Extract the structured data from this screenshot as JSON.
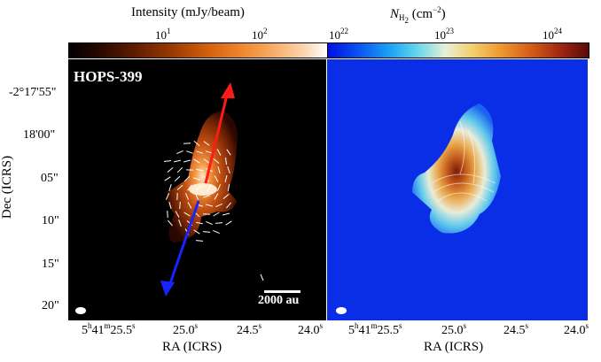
{
  "colorbars": {
    "left": {
      "title": "Intensity (mJy/beam)",
      "ticks": [
        {
          "base": "10",
          "exp": "1"
        },
        {
          "base": "10",
          "exp": "2"
        }
      ]
    },
    "right": {
      "title_var": "N",
      "title_sub": "H",
      "title_subsub": "2",
      "title_unit": " (cm",
      "title_unit_exp": "−2",
      "title_close": ")",
      "ticks": [
        {
          "base": "10",
          "exp": "22"
        },
        {
          "base": "10",
          "exp": "23"
        },
        {
          "base": "10",
          "exp": "24"
        }
      ]
    }
  },
  "panels": {
    "left": {
      "title": "HOPS-399",
      "scalebar_label": "2000 au"
    },
    "right": {}
  },
  "axes": {
    "ylabel": "Dec (ICRS)",
    "xlabel": "RA (ICRS)",
    "yticks": [
      "-2°17'55\"",
      "18'00\"",
      "05\"",
      "10\"",
      "15\"",
      "20\""
    ],
    "xticks": [
      {
        "h": "5",
        "hs": "h",
        "m": "41",
        "ms": "m",
        "s": "25.5",
        "ss": "s"
      },
      {
        "s": "25.0",
        "ss": "s"
      },
      {
        "s": "24.5",
        "ss": "s"
      },
      {
        "s": "24.0",
        "ss": "s"
      }
    ]
  },
  "colors": {
    "outflow_red": "#ff1a1a",
    "outflow_blue": "#1a22ff",
    "panel_left_bg": "#000000",
    "panel_right_bg": "#0a2ee6"
  }
}
